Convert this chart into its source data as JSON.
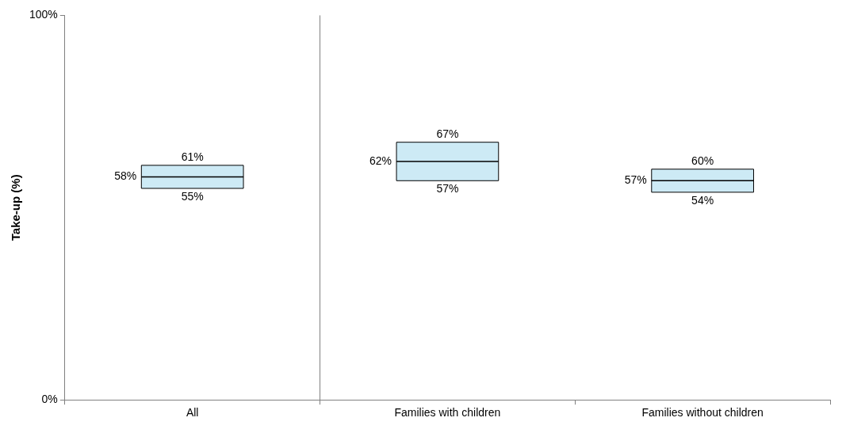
{
  "chart_data": {
    "type": "box",
    "ylabel": "Take-up (%)",
    "categories": [
      "All",
      "Families with children",
      "Families without children"
    ],
    "boxes": [
      {
        "low": 55,
        "q1": 55,
        "median": 58,
        "q3": 61,
        "high": 61
      },
      {
        "low": 57,
        "q1": 57,
        "median": 62,
        "q3": 67,
        "high": 67
      },
      {
        "low": 54,
        "q1": 54,
        "median": 57,
        "q3": 60,
        "high": 60
      }
    ],
    "color": "#cdeaf5",
    "ylim": [
      0,
      100
    ],
    "yticks": [
      {
        "value": 0,
        "label": "0%"
      },
      {
        "value": 100,
        "label": "100%"
      }
    ],
    "grid": false,
    "legend": false,
    "annotations": [
      {
        "text": "61%",
        "x": "All",
        "y": 61
      },
      "58%",
      {
        "text": "55%",
        "x": "All",
        "y": 55
      },
      {
        "text": "67%",
        "x": "Families with children",
        "y": 67
      },
      "62%",
      {
        "text": "57%",
        "x": "Families with children",
        "y": 57
      },
      {
        "text": "60%",
        "x": "Families without children",
        "y": 60
      },
      "57%",
      {
        "text": "54%",
        "x": "Families without children",
        "y": 54
      }
    ]
  }
}
